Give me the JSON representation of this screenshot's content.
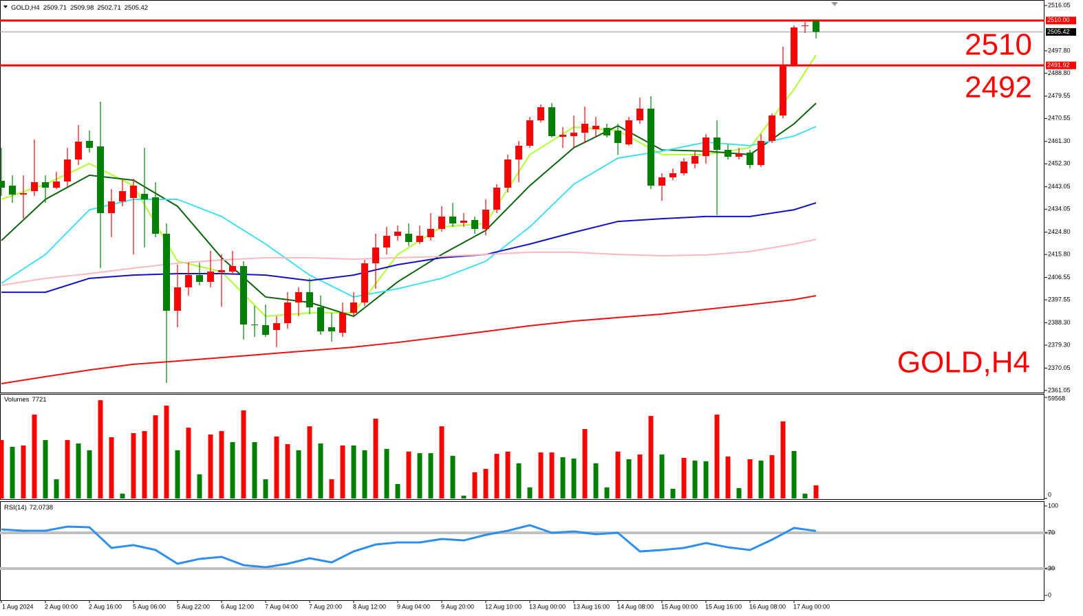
{
  "chart_data": [
    {
      "type": "candlestick",
      "title": "GOLD,H4",
      "categories": [
        "1 Aug 2024",
        null,
        null,
        null,
        "2 Aug 00:00",
        null,
        null,
        null,
        "2 Aug 16:00",
        null,
        null,
        null,
        "5 Aug 06:00",
        null,
        null,
        null,
        "5 Aug 22:00",
        null,
        null,
        null,
        "6 Aug 12:00",
        null,
        null,
        null,
        "7 Aug 04:00",
        null,
        null,
        null,
        "7 Aug 20:00",
        null,
        null,
        null,
        "8 Aug 12:00",
        null,
        null,
        null,
        "9 Aug 04:00",
        null,
        null,
        null,
        "9 Aug 20:00",
        null,
        null,
        null,
        "12 Aug 10:00",
        null,
        null,
        null,
        "13 Aug 00:00",
        null,
        null,
        null,
        "13 Aug 16:00",
        null,
        null,
        null,
        "14 Aug 08:00",
        null,
        null,
        null,
        "15 Aug 00:00",
        null,
        null,
        null,
        "15 Aug 16:00",
        null,
        null,
        null,
        "16 Aug 08:00",
        null,
        null,
        null,
        "17 Aug 00:00",
        null,
        null
      ],
      "open": [
        2445.46,
        2443.52,
        2439.93,
        2441.31,
        2444.91,
        2442.69,
        2445.18,
        2454.04,
        2461.52,
        2459.3,
        2432.45,
        2437.16,
        2438.54,
        2440.2,
        2438.82,
        2424.15,
        2393.15,
        2402.56,
        2407.54,
        2404.77,
        2408.65,
        2408.92,
        2411.14,
        2387.61,
        2387.33,
        2385.4,
        2388.16,
        2396.47,
        2400.62,
        2394.53,
        2386.5,
        2384.29,
        2392.32,
        2396.47,
        2412.25,
        2418.61,
        2423.32,
        2424.15,
        2420.83,
        2422.76,
        2426.09,
        2431.07,
        2428.58,
        2429.68,
        2426.09,
        2433.84,
        2442.69,
        2454.04,
        2459.58,
        2469.82,
        2475.08,
        2463.18,
        2463.45,
        2464.84,
        2466.22,
        2466.78,
        2465.67,
        2460.13,
        2469.82,
        2474.53,
        2443.52,
        2446.85,
        2448.51,
        2452.38,
        2455.43,
        2462.9,
        2457.92,
        2455.15,
        2456.81,
        2451.83,
        2461.52,
        2471.76,
        2491.96,
        2507.74,
        2509.71
      ],
      "high": [
        2458.75,
        2447.68,
        2447.68,
        2462.07,
        2447.68,
        2449.06,
        2458.75,
        2467.88,
        2465.67,
        2477.29,
        2442.14,
        2445.74,
        2446.29,
        2458.75,
        2444.91,
        2428.3,
        2411.69,
        2412.52,
        2412.52,
        2417.23,
        2415.84,
        2417.23,
        2413.08,
        2395.08,
        2395.64,
        2390.93,
        2400.62,
        2402.56,
        2406.16,
        2399.24,
        2392.32,
        2396.47,
        2400.62,
        2413.63,
        2424.15,
        2426.92,
        2427.47,
        2428.3,
        2427.47,
        2432.45,
        2435.22,
        2436.6,
        2432.45,
        2431.07,
        2437.99,
        2444.08,
        2455.98,
        2461.52,
        2471.2,
        2476.19,
        2476.74,
        2467.05,
        2471.76,
        2475.36,
        2471.2,
        2468.44,
        2468.44,
        2471.2,
        2478.95,
        2479.51,
        2448.51,
        2450.44,
        2454.6,
        2457.36,
        2464.28,
        2469.82,
        2460.13,
        2458.75,
        2457.92,
        2464.28,
        2472.59,
        2499.44,
        2508.02,
        2509.4,
        2509.98
      ],
      "low": [
        2439.37,
        2436.6,
        2430.24,
        2439.37,
        2436.6,
        2442.14,
        2442.97,
        2451.83,
        2456.81,
        2410.31,
        2422.76,
        2435.22,
        2415.84,
        2418.61,
        2422.76,
        2364.08,
        2386.5,
        2399.24,
        2403.39,
        2402.56,
        2394.81,
        2407.54,
        2381.52,
        2382.63,
        2382.63,
        2378.48,
        2385.95,
        2390.93,
        2391.76,
        2383.46,
        2380.69,
        2382.63,
        2390.93,
        2395.08,
        2402.0,
        2415.84,
        2421.38,
        2419.17,
        2420.0,
        2421.38,
        2424.98,
        2426.92,
        2426.92,
        2424.15,
        2423.59,
        2432.45,
        2440.76,
        2444.91,
        2458.75,
        2468.99,
        2462.9,
        2458.75,
        2458.75,
        2460.69,
        2462.9,
        2462.9,
        2455.98,
        2459.58,
        2468.44,
        2442.14,
        2437.43,
        2445.74,
        2447.68,
        2450.44,
        2452.38,
        2431.62,
        2454.04,
        2454.04,
        2450.44,
        2451.0,
        2460.69,
        2470.65,
        2491.41,
        2504.97,
        2502.71
      ],
      "close": [
        2442.69,
        2439.93,
        2440.48,
        2444.91,
        2442.69,
        2445.18,
        2454.04,
        2461.24,
        2458.75,
        2432.45,
        2437.16,
        2441.31,
        2443.52,
        2437.99,
        2424.15,
        2393.15,
        2402.56,
        2407.54,
        2404.77,
        2408.92,
        2409.48,
        2411.14,
        2387.61,
        2387.33,
        2383.46,
        2388.16,
        2396.47,
        2400.62,
        2394.53,
        2384.84,
        2384.84,
        2392.32,
        2396.47,
        2412.25,
        2418.61,
        2423.32,
        2424.98,
        2420.83,
        2423.32,
        2426.09,
        2431.07,
        2428.3,
        2429.41,
        2426.09,
        2433.84,
        2442.69,
        2454.04,
        2459.58,
        2469.82,
        2475.08,
        2463.45,
        2464.01,
        2464.84,
        2468.44,
        2467.61,
        2463.73,
        2460.69,
        2469.82,
        2474.53,
        2443.52,
        2446.85,
        2448.51,
        2453.21,
        2455.43,
        2462.9,
        2457.92,
        2455.15,
        2456.26,
        2451.83,
        2461.52,
        2471.76,
        2491.96,
        2507.19,
        2508.02,
        2505.42
      ],
      "up_color": "#ff0000",
      "down_color": "#008000",
      "ylim": [
        2360.21,
        2518.26
      ],
      "yticks": [
        2516.05,
        {
          "value": 2497.8,
          "label": "2497.80"
        },
        {
          "value": 2488.8,
          "label": "2488.80"
        },
        2479.55,
        2470.55,
        {
          "value": 2461.3,
          "label": "2461.30"
        },
        {
          "value": 2452.3,
          "label": "2452.30"
        },
        2443.05,
        2434.05,
        {
          "value": 2424.8,
          "label": "2424.80"
        },
        {
          "value": 2415.8,
          "label": "2415.80"
        },
        2406.55,
        2397.55,
        {
          "value": 2388.3,
          "label": "2388.30"
        },
        {
          "value": 2379.3,
          "label": "2379.30"
        },
        2370.05,
        2361.05
      ],
      "levels": [
        {
          "value": 2510,
          "label": "2510.00"
        },
        2491.92
      ],
      "level_color": "#ff0000",
      "annotations": [
        "2510",
        "2492",
        "GOLD,H4"
      ],
      "moving_averages": {
        "x": [
          0,
          4,
          8,
          12,
          16,
          20,
          24,
          28,
          32,
          36,
          40,
          44,
          48,
          52,
          56,
          60,
          64,
          68,
          72,
          74
        ],
        "lines": [
          {
            "color": "#adff2f",
            "values": [
              2438.0,
              2444.1,
              2452.4,
              2443.5,
              2413.1,
              2408.9,
              2390.9,
              2392.3,
              2392.3,
              2415.8,
              2426.9,
              2428.3,
              2456.0,
              2467.1,
              2465.7,
              2456.0,
              2456.0,
              2458.8,
              2482.3,
              2496.1
            ]
          },
          {
            "color": "#0a640a",
            "values": [
              2421.4,
              2438.0,
              2447.7,
              2445.7,
              2435.2,
              2414.5,
              2398.7,
              2396.5,
              2390.9,
              2404.8,
              2415.8,
              2425.5,
              2443.5,
              2458.8,
              2467.6,
              2457.9,
              2457.4,
              2456.0,
              2468.4,
              2476.7
            ]
          },
          {
            "color": "#3fe0f0",
            "values": [
              2404.2,
              2415.8,
              2433.8,
              2438.0,
              2438.0,
              2431.1,
              2420.0,
              2407.5,
              2398.7,
              2402.0,
              2406.2,
              2413.1,
              2426.9,
              2444.1,
              2454.6,
              2457.4,
              2461.0,
              2459.6,
              2463.5,
              2467.3
            ]
          },
          {
            "color": "#1010c8",
            "values": [
              2400.6,
              2400.6,
              2406.2,
              2407.5,
              2408.1,
              2408.1,
              2407.5,
              2405.3,
              2407.5,
              2411.7,
              2414.5,
              2415.8,
              2420.0,
              2424.7,
              2429.1,
              2430.2,
              2431.1,
              2431.1,
              2433.8,
              2436.6
            ]
          },
          {
            "color": "#ffb6c1",
            "values": [
              2403.4,
              2406.2,
              2408.1,
              2410.3,
              2412.3,
              2413.6,
              2414.5,
              2414.5,
              2413.9,
              2414.5,
              2415.0,
              2415.8,
              2416.7,
              2416.7,
              2415.8,
              2415.3,
              2415.6,
              2417.0,
              2420.0,
              2421.9
            ]
          },
          {
            "color": "#ee1111",
            "values": [
              2363.8,
              2366.6,
              2369.3,
              2371.6,
              2372.9,
              2374.3,
              2375.7,
              2377.1,
              2378.5,
              2380.4,
              2382.6,
              2384.8,
              2387.1,
              2389.0,
              2390.4,
              2391.8,
              2393.7,
              2395.6,
              2397.6,
              2399.2
            ]
          }
        ]
      }
    },
    {
      "type": "bar",
      "title": "Volumes",
      "values": [
        34400,
        30400,
        31200,
        49400,
        34400,
        11300,
        34400,
        32400,
        28400,
        57900,
        36100,
        2800,
        38500,
        39700,
        49000,
        54700,
        28400,
        41700,
        14200,
        37700,
        39700,
        33200,
        51900,
        33200,
        11300,
        36500,
        32000,
        28400,
        42500,
        32400,
        11300,
        31200,
        31200,
        28400,
        47000,
        29200,
        8500,
        27600,
        26700,
        26700,
        42500,
        25100,
        1600,
        15400,
        17400,
        26300,
        27600,
        20700,
        6500,
        27100,
        27100,
        24300,
        23500,
        40900,
        20700,
        6500,
        27600,
        23100,
        25900,
        48600,
        25900,
        5700,
        23900,
        22300,
        21900,
        49400,
        24700,
        6100,
        23100,
        22300,
        25500,
        45400,
        28000,
        2800,
        7721
      ],
      "colors": [
        "#ff0000",
        "#008000",
        "#ff0000",
        "#ff0000",
        "#008000",
        "#008000",
        "#ff0000",
        "#008000",
        "#008000",
        "#ff0000",
        "#ff0000",
        "#008000",
        "#ff0000",
        "#ff0000",
        "#ff0000",
        "#ff0000",
        "#008000",
        "#ff0000",
        "#008000",
        "#ff0000",
        "#ff0000",
        "#008000",
        "#ff0000",
        "#008000",
        "#008000",
        "#ff0000",
        "#ff0000",
        "#008000",
        "#ff0000",
        "#008000",
        "#ff0000",
        "#ff0000",
        "#008000",
        "#008000",
        "#ff0000",
        "#008000",
        "#008000",
        "#ff0000",
        "#008000",
        "#008000",
        "#ff0000",
        "#008000",
        "#008000",
        "#ff0000",
        "#ff0000",
        "#ff0000",
        "#ff0000",
        "#008000",
        "#008000",
        "#ff0000",
        "#ff0000",
        "#008000",
        "#008000",
        "#ff0000",
        "#008000",
        "#008000",
        "#ff0000",
        "#008000",
        "#ff0000",
        "#ff0000",
        "#008000",
        "#008000",
        "#ff0000",
        "#008000",
        "#008000",
        "#ff0000",
        "#ff0000",
        "#008000",
        "#ff0000",
        "#008000",
        "#ff0000",
        "#ff0000",
        "#008000",
        "#008000",
        "#ff0000"
      ],
      "ylim": [
        0,
        59568
      ],
      "yticks": [
        59568,
        0
      ]
    },
    {
      "type": "line",
      "title": "RSI(14)",
      "color": "#2b8ef0",
      "x": [
        0,
        2,
        4,
        6,
        8,
        10,
        12,
        14,
        16,
        18,
        20,
        22,
        24,
        26,
        28,
        30,
        32,
        34,
        36,
        38,
        40,
        42,
        44,
        46,
        48,
        50,
        52,
        54,
        56,
        58,
        60,
        62,
        64,
        66,
        68,
        70,
        72,
        74
      ],
      "values": [
        73.8,
        72.3,
        72.3,
        76.9,
        76.2,
        53.1,
        56.2,
        50.8,
        35.4,
        40.8,
        43.1,
        33.8,
        31.5,
        35.4,
        41.5,
        36.9,
        49.2,
        56.9,
        59.2,
        59.2,
        63.1,
        61.5,
        67.7,
        72.3,
        78.5,
        70.0,
        71.5,
        68.5,
        70.0,
        49.2,
        50.8,
        53.1,
        58.5,
        53.8,
        50.8,
        62.3,
        75.4,
        72.0738
      ],
      "ylim": [
        0,
        100
      ],
      "yticks": [
        100,
        70,
        30,
        0
      ],
      "levels": [
        70,
        30
      ],
      "level_color": "#c0c0c0"
    }
  ]
}
